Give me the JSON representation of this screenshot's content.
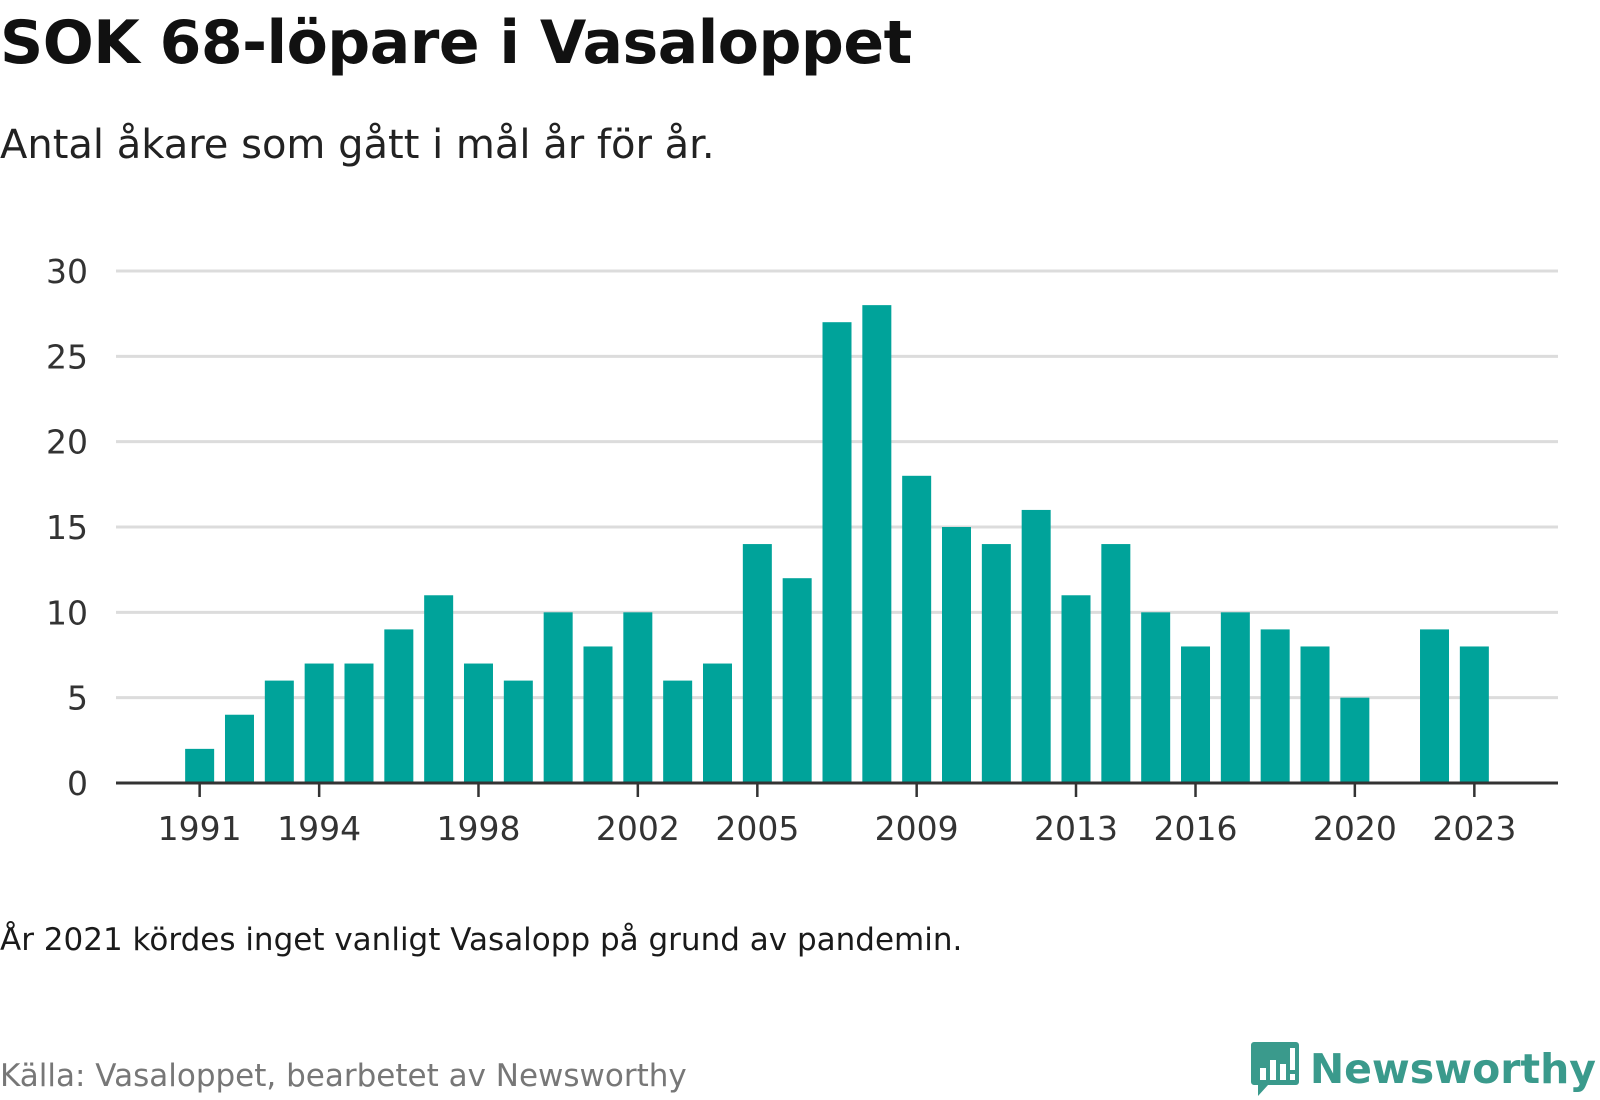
{
  "header": {
    "title": "SOK 68-löpare i Vasaloppet",
    "subtitle": "Antal åkare som gått i mål år för år."
  },
  "footer": {
    "note": "År 2021 kördes inget vanligt Vasalopp på grund av pandemin.",
    "source": "Källa: Vasaloppet, bearbetet av Newsworthy",
    "brand_name": "Newsworthy",
    "brand_icon": "newsworthy-logo-icon"
  },
  "colors": {
    "bar": "#00a39a",
    "grid": "#dcdcdc",
    "axis": "#333333",
    "brand": "#3a9a8c"
  },
  "chart_data": {
    "type": "bar",
    "title": "SOK 68-löpare i Vasaloppet",
    "subtitle": "Antal åkare som gått i mål år för år.",
    "categories": [
      1991,
      1992,
      1993,
      1994,
      1995,
      1996,
      1997,
      1998,
      1999,
      2000,
      2001,
      2002,
      2003,
      2004,
      2005,
      2006,
      2007,
      2008,
      2009,
      2010,
      2011,
      2012,
      2013,
      2014,
      2015,
      2016,
      2017,
      2018,
      2019,
      2020,
      2021,
      2022,
      2023
    ],
    "values": [
      2,
      4,
      6,
      7,
      7,
      9,
      11,
      7,
      6,
      10,
      8,
      10,
      6,
      7,
      14,
      12,
      27,
      28,
      18,
      15,
      14,
      16,
      11,
      14,
      10,
      8,
      10,
      9,
      8,
      5,
      null,
      9,
      8
    ],
    "xticks": [
      "1991",
      "1994",
      "1998",
      "2002",
      "2005",
      "2009",
      "2013",
      "2016",
      "2020",
      "2023"
    ],
    "yticks": [
      "0",
      "5",
      "10",
      "15",
      "20",
      "25",
      "30"
    ],
    "ylim": [
      0,
      30
    ],
    "xlim": [
      1988.9,
      2025.1
    ],
    "grid": true,
    "xlabel": "",
    "ylabel": ""
  }
}
